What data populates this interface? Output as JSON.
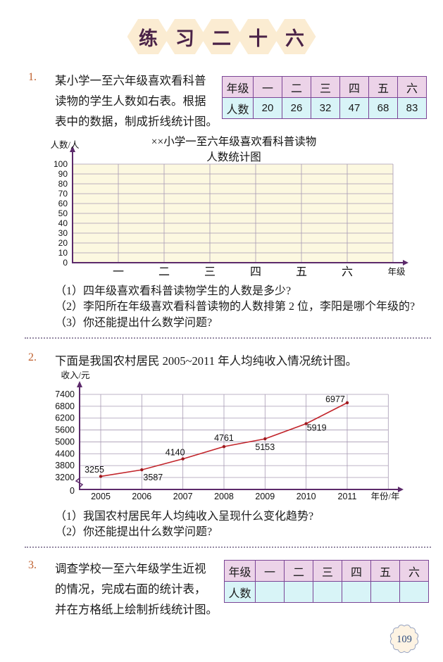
{
  "page": {
    "number": "109"
  },
  "title": {
    "chars": [
      "练",
      "习",
      "二",
      "十",
      "六"
    ]
  },
  "problem1": {
    "number": "1.",
    "lines": [
      "某小学一至六年级喜欢看科普",
      "读物的学生人数如右表。根据",
      "表中的数据，制成折线统计图。"
    ],
    "table": {
      "header_row": [
        "年级",
        "一",
        "二",
        "三",
        "四",
        "五",
        "六"
      ],
      "value_row": [
        "人数",
        "20",
        "26",
        "32",
        "47",
        "68",
        "83"
      ]
    },
    "questions": [
      "（1）四年级喜欢看科普读物学生的人数是多少?",
      "（2）李阳所在年级喜欢看科普读物的人数排第 2 位，李阳是哪个年级的?",
      "（3）你还能提出什么数学问题?"
    ]
  },
  "problem2": {
    "number": "2.",
    "text": "下面是我国农村居民 2005~2011 年人均纯收入情况统计图。",
    "questions": [
      "（1）我国农村居民年人均纯收入呈现什么变化趋势?",
      "（2）你还能提出什么数学问题?"
    ]
  },
  "problem3": {
    "number": "3.",
    "lines": [
      "调查学校一至六年级学生近视",
      "的情况，完成右面的统计表，",
      "并在方格纸上绘制折线统计图。"
    ],
    "table": {
      "header_row": [
        "年级",
        "一",
        "二",
        "三",
        "四",
        "五",
        "六"
      ],
      "value_row": [
        "人数",
        "",
        "",
        "",
        "",
        "",
        ""
      ]
    }
  },
  "colors": {
    "accent_purple": "#5c2a6b",
    "grid_line": "#a79ab3",
    "line_red": "#c2252b",
    "point_red": "#9c1a1f",
    "table_border": "#7b4596",
    "header_pink": "#ecd3e8",
    "body_cyan": "#d8f4f7",
    "chart1_bg": "#fcf8e0",
    "problem_number": "#bf5f2d",
    "badge_border": "#99a5c2",
    "badge_fill": "#fdf3e3",
    "badge_text": "#2e4c7e"
  },
  "chart_data": [
    {
      "type": "line",
      "title_lines": [
        "××小学一至六年级喜欢看科普读物",
        "人数统计图"
      ],
      "ylabel": "人数/人",
      "xlabel": "年级",
      "categories": [
        "一",
        "二",
        "三",
        "四",
        "五",
        "六"
      ],
      "ylim": [
        0,
        100
      ],
      "ystep": 10,
      "origin_label": "0",
      "grid": true,
      "series": []
    },
    {
      "type": "line",
      "ylabel": "收入/元",
      "xlabel": "年份/年",
      "x": [
        "2005",
        "2006",
        "2007",
        "2008",
        "2009",
        "2010",
        "2011"
      ],
      "values": [
        3255,
        3587,
        4140,
        4761,
        5153,
        5919,
        6977
      ],
      "yticks": [
        3200,
        3800,
        4400,
        5000,
        5600,
        6200,
        6800,
        7400
      ],
      "origin_label": "0",
      "axis_break": true,
      "grid": true
    }
  ]
}
